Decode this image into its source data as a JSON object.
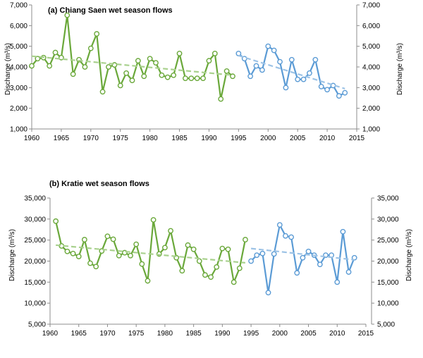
{
  "chart_data": [
    {
      "type": "line",
      "title": "(a) Chiang Saen wet season flows",
      "xlabel": "",
      "ylabel": "Discharge (m³/s)",
      "ylabel_right": "Discharge (m³/s)",
      "xlim": [
        1960,
        2015
      ],
      "ylim": [
        1000,
        7000
      ],
      "x_ticks": [
        "1960",
        "1965",
        "1970",
        "1975",
        "1980",
        "1985",
        "1990",
        "1995",
        "2000",
        "2005",
        "2010",
        "2015"
      ],
      "y_ticks": [
        "1,000",
        "2,000",
        "3,000",
        "4,000",
        "5,000",
        "6,000",
        "7,000"
      ],
      "grid": false,
      "legend": "none",
      "series": [
        {
          "color": "#6aa83a",
          "style": "solid-markers",
          "x": [
            1960,
            1961,
            1962,
            1963,
            1964,
            1965,
            1966,
            1967,
            1968,
            1969,
            1970,
            1971,
            1972,
            1973,
            1974,
            1975,
            1976,
            1977,
            1978,
            1979,
            1980,
            1981,
            1982,
            1983,
            1984,
            1985,
            1986,
            1987,
            1988,
            1989,
            1990,
            1991,
            1992,
            1993,
            1994
          ],
          "y": [
            4050,
            4400,
            4450,
            4050,
            4700,
            4450,
            6500,
            3650,
            4350,
            4000,
            4900,
            5600,
            2800,
            4000,
            4100,
            3100,
            3700,
            3350,
            4300,
            3550,
            4400,
            4200,
            3600,
            3500,
            3600,
            4650,
            3450,
            3450,
            3450,
            3450,
            4300,
            4650,
            2450,
            3800,
            3550
          ]
        },
        {
          "color": "#5b9bd5",
          "style": "solid-markers",
          "x": [
            1995,
            1996,
            1997,
            1998,
            1999,
            2000,
            2001,
            2002,
            2003,
            2004,
            2005,
            2006,
            2007,
            2008,
            2009,
            2010,
            2011,
            2012,
            2013
          ],
          "y": [
            4650,
            4400,
            3550,
            4050,
            3850,
            5000,
            4800,
            4250,
            3000,
            4350,
            3400,
            3400,
            3700,
            4350,
            3050,
            2900,
            3100,
            2600,
            2750
          ]
        },
        {
          "color": "#a9d18e",
          "style": "dashed-trend",
          "x": [
            1960,
            1994
          ],
          "y": [
            4520,
            3600
          ]
        },
        {
          "color": "#9dc3e6",
          "style": "dashed-trend",
          "x": [
            1995,
            2013
          ],
          "y": [
            4550,
            2950
          ]
        }
      ]
    },
    {
      "type": "line",
      "title": "(b) Kratie wet season flows",
      "xlabel": "",
      "ylabel": "Discharge (m³/s)",
      "ylabel_right": "Discharge (m³/s)",
      "xlim": [
        1960,
        2015
      ],
      "ylim": [
        5000,
        35000
      ],
      "x_ticks": [
        "1960",
        "1965",
        "1970",
        "1975",
        "1980",
        "1985",
        "1990",
        "1995",
        "2000",
        "2005",
        "2010",
        "2015"
      ],
      "y_ticks": [
        "5,000",
        "10,000",
        "15,000",
        "20,000",
        "25,000",
        "30,000",
        "35,000"
      ],
      "grid": false,
      "legend": "none",
      "series": [
        {
          "color": "#6aa83a",
          "style": "solid-markers",
          "x": [
            1961,
            1962,
            1963,
            1964,
            1965,
            1966,
            1967,
            1968,
            1969,
            1970,
            1971,
            1972,
            1973,
            1974,
            1975,
            1976,
            1977,
            1978,
            1979,
            1980,
            1981,
            1982,
            1983,
            1984,
            1985,
            1986,
            1987,
            1988,
            1989,
            1990,
            1991,
            1992,
            1993,
            1994
          ],
          "y": [
            29500,
            23600,
            22300,
            21800,
            21100,
            25100,
            19500,
            18700,
            22400,
            25900,
            25200,
            21300,
            22000,
            21300,
            24000,
            19300,
            15300,
            29800,
            21700,
            23200,
            27200,
            20800,
            17700,
            23800,
            22800,
            20000,
            16700,
            16200,
            18600,
            23000,
            22800,
            15000,
            18300,
            25100
          ]
        },
        {
          "color": "#5b9bd5",
          "style": "solid-markers",
          "x": [
            1995,
            1996,
            1997,
            1998,
            1999,
            2000,
            2001,
            2002,
            2003,
            2004,
            2005,
            2006,
            2007,
            2008,
            2009,
            2010,
            2011,
            2012,
            2013
          ],
          "y": [
            20000,
            21400,
            21800,
            12500,
            21700,
            28600,
            26000,
            25700,
            17200,
            20800,
            22300,
            21400,
            19200,
            21400,
            21400,
            15000,
            27000,
            17400,
            20800
          ]
        },
        {
          "color": "#a9d18e",
          "style": "dashed-trend",
          "x": [
            1961,
            1994
          ],
          "y": [
            23800,
            19600
          ]
        },
        {
          "color": "#9dc3e6",
          "style": "dashed-trend",
          "x": [
            1995,
            2013
          ],
          "y": [
            23000,
            20300
          ]
        }
      ]
    }
  ]
}
